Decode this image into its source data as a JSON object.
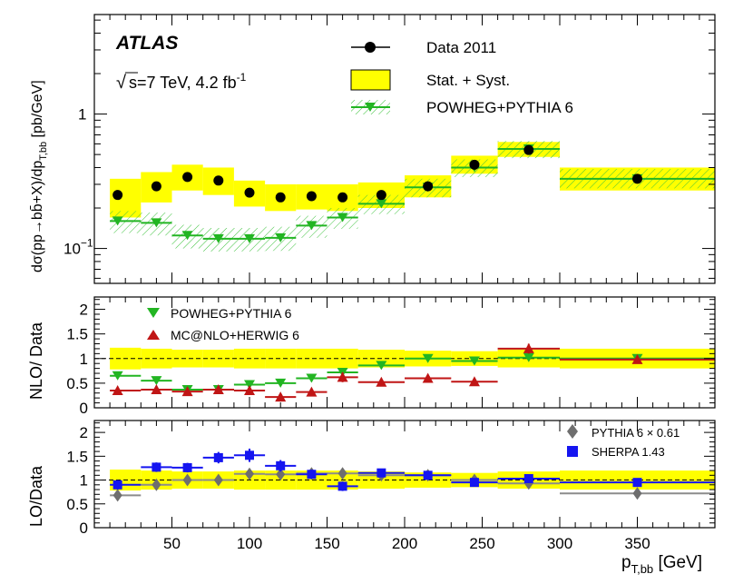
{
  "chart_data": [
    {
      "type": "scatter",
      "panel": "main",
      "title": "",
      "experiment_label": "ATLAS",
      "energy_label": "s=7 TeV, 4.2 fb",
      "energy_sup": "-1",
      "sqrt_symbol": "√",
      "ylabel": "dσ(pp→bb̄+X)/dp",
      "ylabel_sub": "T,bb",
      "ylabel_units": "[pb/GeV]",
      "yscale": "log",
      "ylim": [
        0.055,
        5.5
      ],
      "xlim": [
        0,
        400
      ],
      "yticks": [
        {
          "value": 0.1,
          "base": "10",
          "exp": "−1"
        },
        {
          "value": 1,
          "base": "1",
          "exp": ""
        }
      ],
      "legend": [
        "Data 2011",
        "Stat. + Syst.",
        "POWHEG+PYTHIA 6"
      ],
      "legend_position": "top-right",
      "data": {
        "bins": [
          [
            10,
            30
          ],
          [
            30,
            50
          ],
          [
            50,
            70
          ],
          [
            70,
            90
          ],
          [
            90,
            110
          ],
          [
            110,
            130
          ],
          [
            130,
            150
          ],
          [
            150,
            170
          ],
          [
            170,
            200
          ],
          [
            200,
            230
          ],
          [
            230,
            260
          ],
          [
            260,
            300
          ],
          [
            300,
            400
          ]
        ],
        "x": [
          15,
          40,
          60,
          80,
          100,
          120,
          140,
          160,
          185,
          215,
          245,
          280,
          350
        ],
        "y": [
          0.25,
          0.29,
          0.34,
          0.32,
          0.26,
          0.24,
          0.245,
          0.24,
          0.25,
          0.29,
          0.42,
          0.54,
          0.33
        ],
        "band_lo": [
          0.17,
          0.22,
          0.27,
          0.25,
          0.205,
          0.19,
          0.195,
          0.19,
          0.2,
          0.24,
          0.36,
          0.48,
          0.27
        ],
        "band_hi": [
          0.33,
          0.37,
          0.42,
          0.4,
          0.32,
          0.3,
          0.3,
          0.3,
          0.31,
          0.35,
          0.49,
          0.62,
          0.4
        ]
      },
      "powheg": {
        "y": [
          0.16,
          0.155,
          0.125,
          0.118,
          0.118,
          0.12,
          0.148,
          0.17,
          0.215,
          0.285,
          0.4,
          0.55,
          0.33
        ],
        "band_lo": [
          0.13,
          0.125,
          0.1,
          0.095,
          0.095,
          0.096,
          0.12,
          0.14,
          0.18,
          0.24,
          0.34,
          0.47,
          0.28
        ],
        "band_hi": [
          0.19,
          0.185,
          0.15,
          0.142,
          0.142,
          0.145,
          0.175,
          0.2,
          0.25,
          0.33,
          0.46,
          0.63,
          0.39
        ]
      }
    },
    {
      "type": "scatter",
      "panel": "nlo_ratio",
      "ylabel": "NLO/ Data",
      "ylim": [
        0,
        2.25
      ],
      "yticks": [
        0,
        0.5,
        1,
        1.5,
        2
      ],
      "ytick_labels": [
        "0",
        "0.5",
        "1",
        "1.5",
        "2"
      ],
      "legend": [
        "POWHEG+PYTHIA 6",
        "MC@NLO+HERWIG 6"
      ],
      "legend_position": "top-left",
      "band_lo": [
        0.78,
        0.8,
        0.82,
        0.82,
        0.8,
        0.8,
        0.8,
        0.8,
        0.82,
        0.84,
        0.85,
        0.82,
        0.8
      ],
      "band_hi": [
        1.22,
        1.2,
        1.18,
        1.18,
        1.2,
        1.2,
        1.2,
        1.2,
        1.18,
        1.16,
        1.15,
        1.18,
        1.2
      ],
      "series": [
        {
          "name": "POWHEG+PYTHIA 6",
          "values": [
            0.65,
            0.55,
            0.37,
            0.37,
            0.47,
            0.5,
            0.6,
            0.72,
            0.86,
            1.0,
            0.95,
            1.02,
            1.0
          ]
        },
        {
          "name": "MC@NLO+HERWIG 6",
          "values": [
            0.35,
            0.37,
            0.33,
            0.37,
            0.35,
            0.22,
            0.32,
            0.62,
            0.52,
            0.6,
            0.53,
            1.2,
            0.98
          ],
          "errors": [
            0.04,
            0.04,
            0.04,
            0.04,
            0.05,
            0.05,
            0.05,
            0.1,
            0.05,
            0.05,
            0.05,
            0.1,
            0.08
          ]
        }
      ]
    },
    {
      "type": "scatter",
      "panel": "lo_ratio",
      "ylabel": "LO/Data",
      "xlabel": "p",
      "xlabel_sub": "T,bb",
      "xlabel_units": "[GeV]",
      "ylim": [
        0,
        2.25
      ],
      "yticks": [
        0,
        0.5,
        1,
        1.5,
        2
      ],
      "ytick_labels": [
        "0",
        "0.5",
        "1",
        "1.5",
        "2"
      ],
      "xticks": [
        50,
        100,
        150,
        200,
        250,
        300,
        350
      ],
      "xtick_labels": [
        "50",
        "100",
        "150",
        "200",
        "250",
        "300",
        "350"
      ],
      "legend": [
        "PYTHIA 6 × 0.61",
        "SHERPA 1.43"
      ],
      "legend_position": "top-right",
      "band_lo": [
        0.78,
        0.8,
        0.82,
        0.82,
        0.8,
        0.8,
        0.8,
        0.8,
        0.82,
        0.84,
        0.85,
        0.82,
        0.8
      ],
      "band_hi": [
        1.22,
        1.2,
        1.18,
        1.18,
        1.2,
        1.2,
        1.2,
        1.2,
        1.18,
        1.16,
        1.15,
        1.18,
        1.2
      ],
      "series": [
        {
          "name": "PYTHIA 6 × 0.61",
          "values": [
            0.68,
            0.9,
            1.0,
            1.0,
            1.13,
            1.12,
            1.14,
            1.14,
            1.1,
            1.1,
            1.0,
            0.93,
            0.72
          ]
        },
        {
          "name": "SHERPA 1.43",
          "values": [
            0.9,
            1.27,
            1.26,
            1.47,
            1.52,
            1.3,
            1.12,
            0.87,
            1.15,
            1.1,
            0.95,
            1.03,
            0.95
          ],
          "errors": [
            0.1,
            0.1,
            0.1,
            0.12,
            0.14,
            0.12,
            0.1,
            0.1,
            0.08,
            0.08,
            0.07,
            0.07,
            0.06
          ]
        }
      ]
    }
  ]
}
